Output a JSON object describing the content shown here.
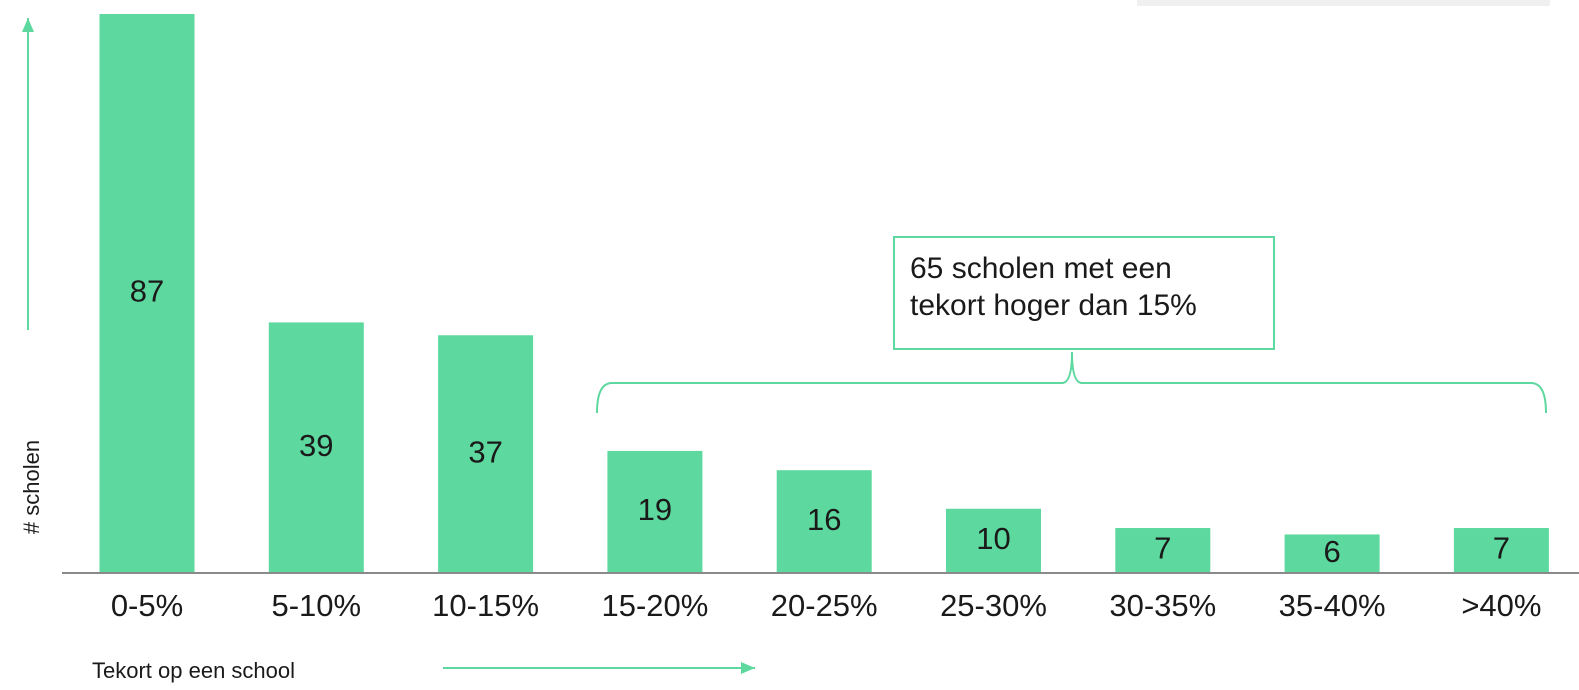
{
  "chart_data": {
    "type": "bar",
    "x_label": "Tekort op een school",
    "y_label": "# scholen",
    "categories": [
      "0-5%",
      "5-10%",
      "10-15%",
      "15-20%",
      "20-25%",
      "25-30%",
      "30-35%",
      "35-40%",
      ">40%"
    ],
    "values": [
      87,
      39,
      37,
      19,
      16,
      10,
      7,
      6,
      7
    ],
    "color": "#5dd89e",
    "annotation": {
      "lines": [
        "65 scholen met een",
        "tekort hoger dan 15%"
      ]
    }
  }
}
